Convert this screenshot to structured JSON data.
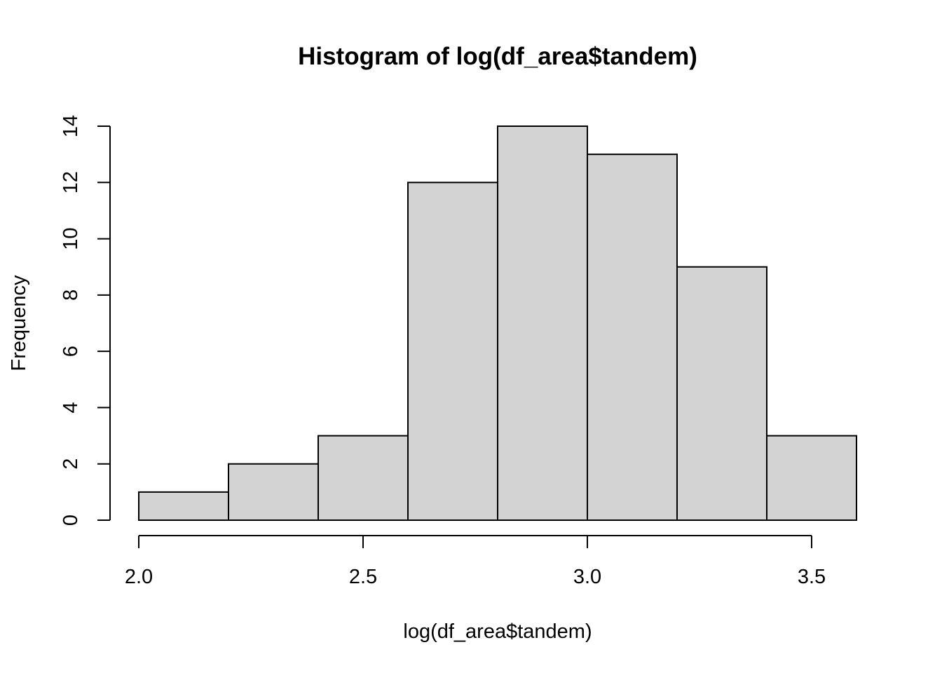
{
  "chart_data": {
    "type": "bar",
    "subtype": "histogram",
    "title": "Histogram of log(df_area$tandem)",
    "xlabel": "log(df_area$tandem)",
    "ylabel": "Frequency",
    "bins": [
      {
        "start": 2.0,
        "end": 2.2,
        "count": 1
      },
      {
        "start": 2.2,
        "end": 2.4,
        "count": 2
      },
      {
        "start": 2.4,
        "end": 2.6,
        "count": 3
      },
      {
        "start": 2.6,
        "end": 2.8,
        "count": 12
      },
      {
        "start": 2.8,
        "end": 3.0,
        "count": 14
      },
      {
        "start": 3.0,
        "end": 3.2,
        "count": 13
      },
      {
        "start": 3.2,
        "end": 3.4,
        "count": 9
      },
      {
        "start": 3.4,
        "end": 3.6,
        "count": 3
      }
    ],
    "xticks": [
      2.0,
      2.5,
      3.0,
      3.5
    ],
    "xtick_labels": [
      "2.0",
      "2.5",
      "3.0",
      "3.5"
    ],
    "yticks": [
      0,
      2,
      4,
      6,
      8,
      10,
      12,
      14
    ],
    "ytick_labels": [
      "0",
      "2",
      "4",
      "6",
      "8",
      "10",
      "12",
      "14"
    ],
    "xlim": [
      2.0,
      3.6
    ],
    "ylim": [
      0,
      14
    ],
    "grid": false,
    "legend": "none",
    "colors": {
      "bar_fill": "#d3d3d3",
      "bar_stroke": "#000000",
      "axis": "#000000",
      "background": "#ffffff"
    }
  }
}
